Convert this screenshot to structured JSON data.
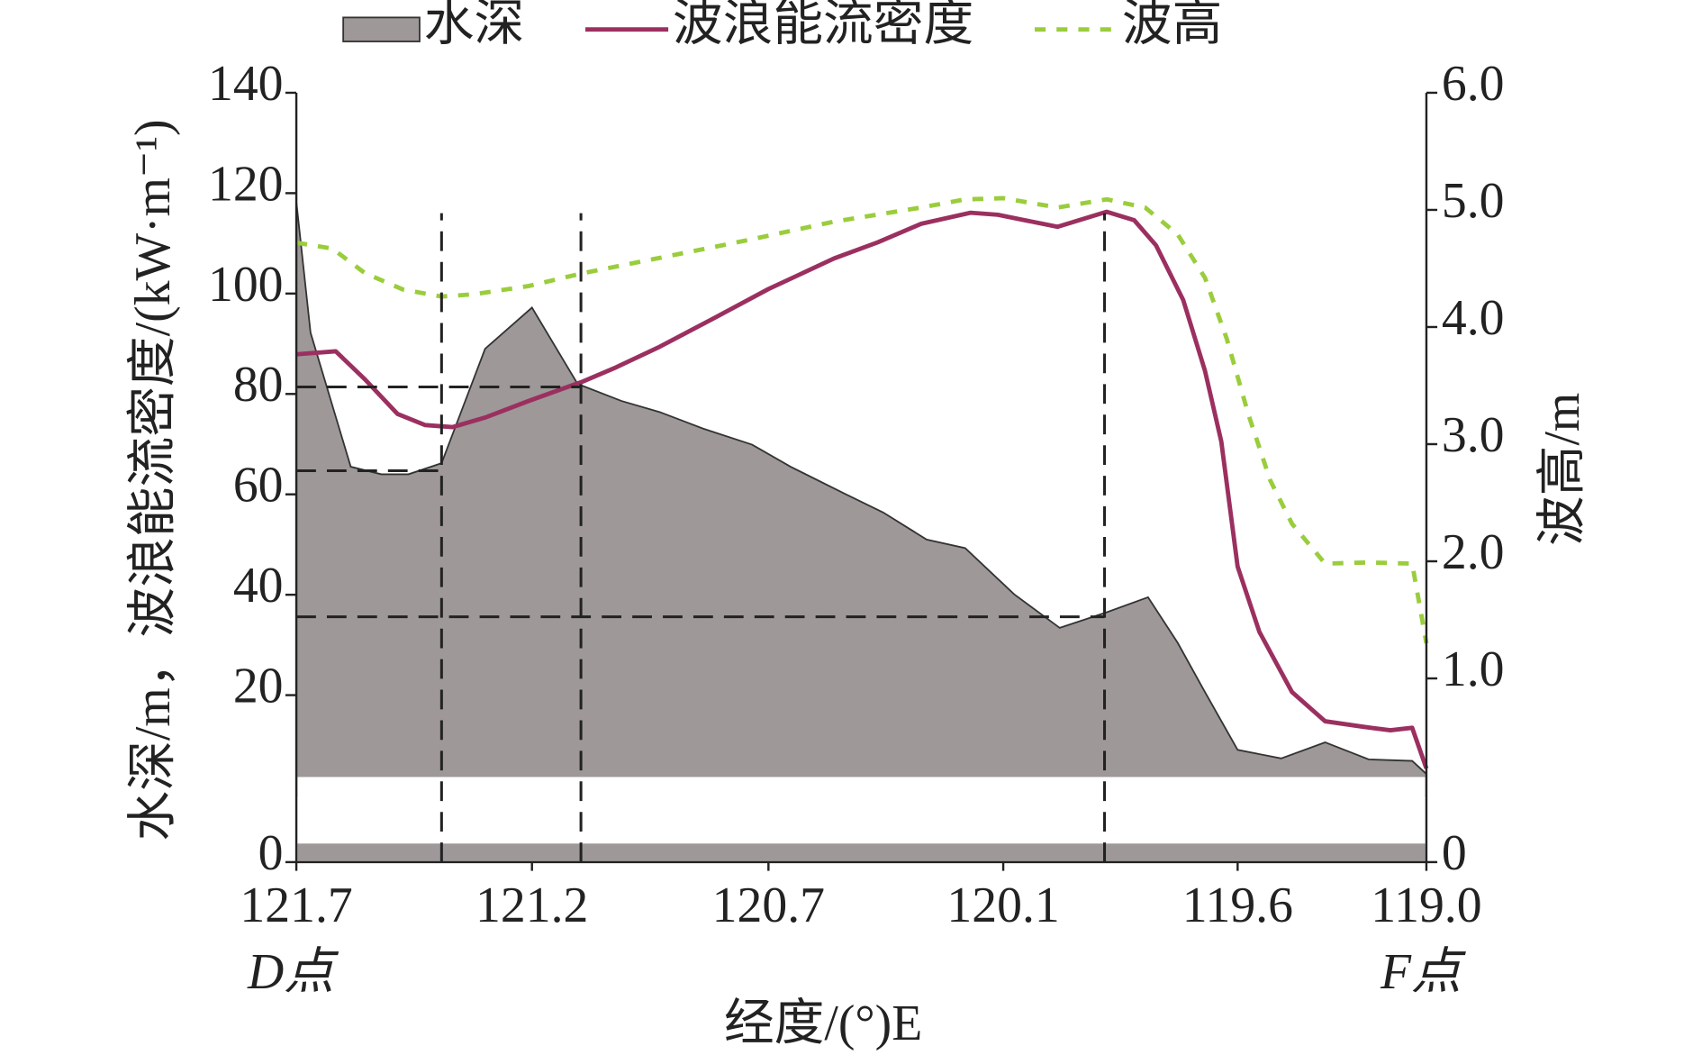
{
  "chart_data": {
    "type": "line",
    "legend": "top",
    "x_label": "经度/(°)E",
    "y_label": "水深/m，波浪能流密度/(kW·m⁻¹)",
    "y2_label": "波高/m",
    "start_label": "D点",
    "end_label": "F点",
    "xlim": [
      121.7,
      119.0
    ],
    "xticks": [
      121.7,
      {
        "value": 121.137,
        "label": "121.2"
      },
      {
        "value": 120.572,
        "label": "120.7"
      },
      {
        "value": 120.011,
        "label": "120.1"
      },
      {
        "value": 119.451,
        "label": "119.6"
      },
      {
        "value": 119.0,
        "label": "119.0"
      }
    ],
    "ylim": [
      0,
      140
    ],
    "yticks": [
      0,
      20,
      40,
      60,
      80,
      100,
      120,
      140
    ],
    "y2lim": [
      0,
      6
    ],
    "y2ticks": [
      {
        "value": 0,
        "label": "0"
      },
      {
        "value": 1,
        "label": "1.0"
      },
      {
        "value": 2,
        "label": "2.0"
      },
      {
        "value": 3,
        "label": "3.0"
      },
      {
        "value": 4,
        "label": "4.0"
      },
      {
        "value": 5,
        "label": "5.0"
      },
      {
        "value": 6,
        "label": "6.0"
      }
    ],
    "series": [
      {
        "name": "水深",
        "type": "area",
        "color": "#9e9898",
        "x": [
          121.7,
          121.666,
          121.57,
          121.497,
          121.432,
          121.353,
          121.249,
          121.137,
          121.028,
          120.923,
          120.832,
          120.728,
          120.611,
          120.519,
          120.389,
          120.298,
          120.194,
          120.102,
          119.985,
          119.876,
          119.764,
          119.665,
          119.594,
          119.529,
          119.451,
          119.347,
          119.242,
          119.138,
          119.034,
          119.0
        ],
        "values": [
          118.3,
          92.2,
          65.5,
          64.0,
          64.0,
          66.2,
          89.0,
          97.2,
          82.0,
          78.6,
          76.4,
          73.1,
          69.9,
          65.5,
          60.1,
          56.4,
          51.0,
          49.3,
          40.1,
          33.4,
          36.5,
          39.5,
          30.4,
          20.6,
          9.1,
          7.4,
          10.6,
          7.2,
          6.9,
          4.3
        ]
      },
      {
        "name": "波浪能流密度",
        "type": "line",
        "color": "#9b3060",
        "x": [
          121.7,
          121.606,
          121.536,
          121.458,
          121.392,
          121.327,
          121.249,
          121.145,
          121.015,
          120.936,
          120.832,
          120.702,
          120.572,
          120.415,
          120.311,
          120.207,
          120.089,
          120.024,
          119.959,
          119.881,
          119.764,
          119.698,
          119.646,
          119.581,
          119.529,
          119.49,
          119.451,
          119.399,
          119.321,
          119.242,
          119.151,
          119.086,
          119.034,
          119.0
        ],
        "values": [
          87.9,
          88.5,
          82.9,
          76.0,
          73.8,
          73.4,
          75.3,
          78.6,
          82.5,
          85.3,
          89.4,
          95.1,
          100.9,
          107.0,
          110.2,
          113.9,
          116.1,
          115.7,
          114.6,
          113.3,
          116.3,
          114.6,
          109.6,
          98.7,
          84.6,
          70.5,
          45.6,
          32.6,
          20.6,
          14.8,
          13.7,
          13.0,
          13.5,
          5.4
        ]
      },
      {
        "name": "波高",
        "type": "line",
        "dashed": true,
        "axis": "y2",
        "color": "#9acd3c",
        "x": [
          121.7,
          121.614,
          121.536,
          121.445,
          121.353,
          121.275,
          121.145,
          121.015,
          120.832,
          120.624,
          120.415,
          120.207,
          120.102,
          120.011,
          119.881,
          119.764,
          119.672,
          119.594,
          119.529,
          119.477,
          119.425,
          119.373,
          119.321,
          119.242,
          119.138,
          119.034,
          119.0
        ],
        "values": [
          4.72,
          4.67,
          4.46,
          4.32,
          4.26,
          4.28,
          4.35,
          4.46,
          4.59,
          4.74,
          4.9,
          5.02,
          5.09,
          5.1,
          5.02,
          5.09,
          5.02,
          4.79,
          4.42,
          3.9,
          3.25,
          2.69,
          2.32,
          1.98,
          1.99,
          1.98,
          1.3
        ]
      }
    ],
    "guides": {
      "vlines": [
        {
          "x": 121.353,
          "top": 116
        },
        {
          "x": 121.02,
          "top": 116
        },
        {
          "x": 119.769,
          "top": 116
        }
      ],
      "hlines": [
        {
          "y": 81.4,
          "x_end": 121.02
        },
        {
          "y": 64.7,
          "x_end": 121.353
        },
        {
          "y": 35.6,
          "x_end": 119.769
        }
      ]
    }
  }
}
